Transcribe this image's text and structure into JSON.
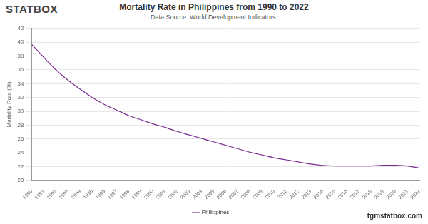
{
  "chart_data": {
    "type": "line",
    "title": "Mortality Rate in Philippines from 1990 to 2022",
    "subtitle": "Data Source: World Development Indicators.",
    "y_label": "Mortality Rate (%)",
    "annotations": [
      "STATBOX",
      "tgmstatbox.com"
    ],
    "categories": [
      "1990",
      "1991",
      "1992",
      "1993",
      "1994",
      "1995",
      "1996",
      "1997",
      "1998",
      "1999",
      "2000",
      "2001",
      "2002",
      "2003",
      "2004",
      "2005",
      "2006",
      "2007",
      "2008",
      "2009",
      "2010",
      "2011",
      "2012",
      "2013",
      "2014",
      "2015",
      "2016",
      "2017",
      "2018",
      "2019",
      "2020",
      "2021",
      "2022"
    ],
    "series": [
      {
        "name": "Philippines",
        "color": "#7b2d8e",
        "values": [
          39.7,
          37.8,
          36.0,
          34.5,
          33.2,
          32.0,
          31.0,
          30.2,
          29.4,
          28.8,
          28.2,
          27.7,
          27.1,
          26.6,
          26.1,
          25.6,
          25.1,
          24.6,
          24.1,
          23.7,
          23.3,
          23.0,
          22.7,
          22.4,
          22.2,
          22.1,
          22.1,
          22.1,
          22.1,
          22.2,
          22.2,
          22.1,
          21.8
        ]
      }
    ],
    "ylim": [
      20,
      42
    ],
    "yticks": [
      20,
      22,
      24,
      26,
      28,
      30,
      32,
      34,
      36,
      38,
      40,
      42
    ],
    "grid": true,
    "legend": "bottom"
  }
}
